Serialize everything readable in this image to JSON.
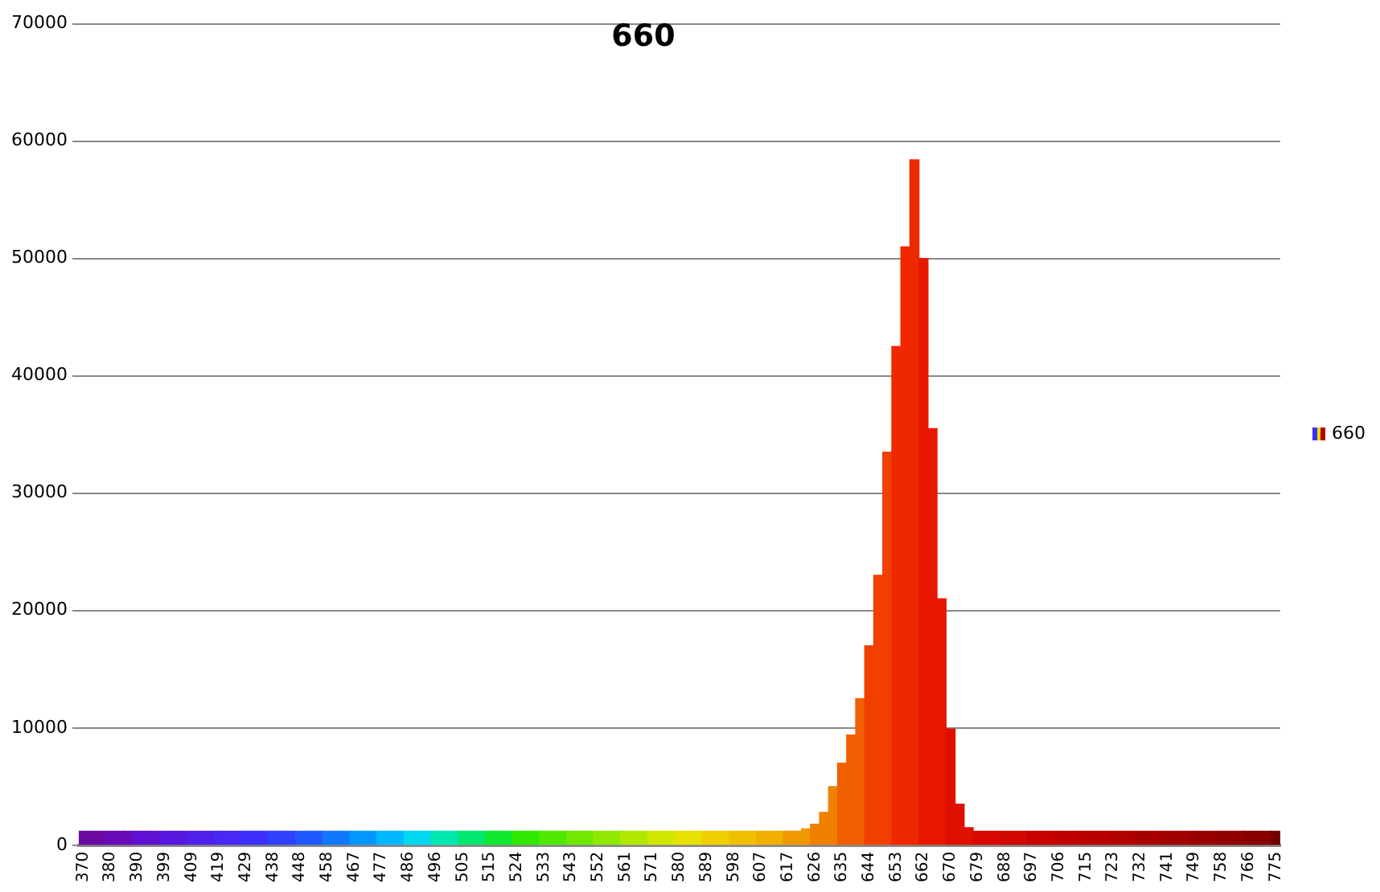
{
  "chart_data": {
    "type": "bar",
    "title": "660",
    "categories": [
      "370",
      null,
      null,
      "380",
      null,
      null,
      "390",
      null,
      null,
      "399",
      null,
      null,
      "409",
      null,
      null,
      "419",
      null,
      null,
      "429",
      null,
      null,
      "438",
      null,
      null,
      "448",
      null,
      null,
      "458",
      null,
      null,
      "467",
      null,
      null,
      "477",
      null,
      null,
      "486",
      null,
      null,
      "496",
      null,
      null,
      "505",
      null,
      null,
      "515",
      null,
      null,
      "524",
      null,
      null,
      "533",
      null,
      null,
      "543",
      null,
      null,
      "552",
      null,
      null,
      "561",
      null,
      null,
      "571",
      null,
      null,
      "580",
      null,
      null,
      "589",
      null,
      null,
      "598",
      null,
      null,
      "607",
      null,
      null,
      "617",
      null,
      null,
      "626",
      null,
      null,
      "635",
      null,
      null,
      "644",
      null,
      null,
      "653",
      null,
      null,
      "662",
      null,
      null,
      "670",
      null,
      null,
      "679",
      null,
      null,
      "688",
      null,
      null,
      "697",
      null,
      null,
      "706",
      null,
      null,
      "715",
      null,
      null,
      "723",
      null,
      null,
      "732",
      null,
      null,
      "741",
      null,
      null,
      "749",
      null,
      null,
      "758",
      null,
      null,
      "766",
      null,
      null,
      "775"
    ],
    "series": [
      {
        "name": "660",
        "values": [
          1200,
          1200,
          1200,
          1200,
          1200,
          1200,
          1200,
          1200,
          1200,
          1200,
          1200,
          1200,
          1200,
          1200,
          1200,
          1200,
          1200,
          1200,
          1200,
          1200,
          1200,
          1200,
          1200,
          1200,
          1200,
          1200,
          1200,
          1200,
          1200,
          1200,
          1200,
          1200,
          1200,
          1200,
          1200,
          1200,
          1200,
          1200,
          1200,
          1200,
          1200,
          1200,
          1200,
          1200,
          1200,
          1200,
          1200,
          1200,
          1200,
          1200,
          1200,
          1200,
          1200,
          1200,
          1200,
          1200,
          1200,
          1200,
          1200,
          1200,
          1200,
          1200,
          1200,
          1200,
          1200,
          1200,
          1200,
          1200,
          1200,
          1200,
          1200,
          1200,
          1200,
          1200,
          1200,
          1200,
          1200,
          1200,
          1200,
          1200,
          1400,
          1800,
          2800,
          5000,
          7000,
          9400,
          12500,
          17000,
          23000,
          33500,
          42500,
          51000,
          58400,
          50000,
          35500,
          21000,
          9900,
          3500,
          1500,
          1200,
          1200,
          1200,
          1200,
          1200,
          1200,
          1200,
          1200,
          1200,
          1200,
          1200,
          1200,
          1200,
          1200,
          1200,
          1200,
          1200,
          1200,
          1200,
          1200,
          1200,
          1200,
          1200,
          1200,
          1200,
          1200,
          1200,
          1200,
          1200,
          1200,
          1200,
          1200,
          1200,
          1200
        ],
        "colors": [
          "#6a0aa0",
          "#6a0aa0",
          "#6a0aa0",
          "#680ab8",
          "#680ab8",
          "#680ab8",
          "#6010d0",
          "#6010d0",
          "#6010d0",
          "#5818e0",
          "#5818e0",
          "#5818e0",
          "#5020ea",
          "#5020ea",
          "#5020ea",
          "#4828f4",
          "#4828f4",
          "#4828f4",
          "#3c30fc",
          "#3c30fc",
          "#3c30fc",
          "#3040ff",
          "#3040ff",
          "#3040ff",
          "#2058ff",
          "#2058ff",
          "#2058ff",
          "#1078ff",
          "#1078ff",
          "#1078ff",
          "#0098ff",
          "#0098ff",
          "#0098ff",
          "#00b8ff",
          "#00b8ff",
          "#00b8ff",
          "#00d8f0",
          "#00d8f0",
          "#00d8f0",
          "#00e8b0",
          "#00e8b0",
          "#00e8b0",
          "#00e870",
          "#00e870",
          "#00e870",
          "#10e830",
          "#10e830",
          "#10e830",
          "#30e800",
          "#30e800",
          "#30e800",
          "#50e800",
          "#50e800",
          "#50e800",
          "#70e800",
          "#70e800",
          "#70e800",
          "#90e800",
          "#90e800",
          "#90e800",
          "#b0e800",
          "#b0e800",
          "#b0e800",
          "#d0e800",
          "#d0e800",
          "#d0e800",
          "#e8e000",
          "#e8e000",
          "#e8e000",
          "#f0d000",
          "#f0d000",
          "#f0d000",
          "#f0c000",
          "#f0c000",
          "#f0c000",
          "#f0b000",
          "#f0b000",
          "#f0b000",
          "#f09800",
          "#f09800",
          "#f09800",
          "#f08000",
          "#f08000",
          "#f08000",
          "#f06000",
          "#f06000",
          "#f06000",
          "#f04000",
          "#f04000",
          "#f04000",
          "#f02800",
          "#f02800",
          "#f02800",
          "#e81800",
          "#e81800",
          "#e81800",
          "#e01000",
          "#e01000",
          "#e01000",
          "#d80800",
          "#d80800",
          "#d80800",
          "#d00800",
          "#d00800",
          "#d00800",
          "#c80000",
          "#c80000",
          "#c80000",
          "#c00000",
          "#c00000",
          "#c00000",
          "#b80000",
          "#b80000",
          "#b80000",
          "#b00000",
          "#b00000",
          "#b00000",
          "#a80000",
          "#a80000",
          "#a80000",
          "#a00000",
          "#a00000",
          "#a00000",
          "#980000",
          "#980000",
          "#980000",
          "#900000",
          "#900000",
          "#900000",
          "#880000",
          "#880000",
          "#880000",
          "#700000"
        ]
      }
    ],
    "ylim": [
      0,
      70000
    ],
    "yticks": [
      0,
      10000,
      20000,
      30000,
      40000,
      50000,
      60000,
      70000
    ],
    "grid": "y",
    "legend": "right"
  }
}
